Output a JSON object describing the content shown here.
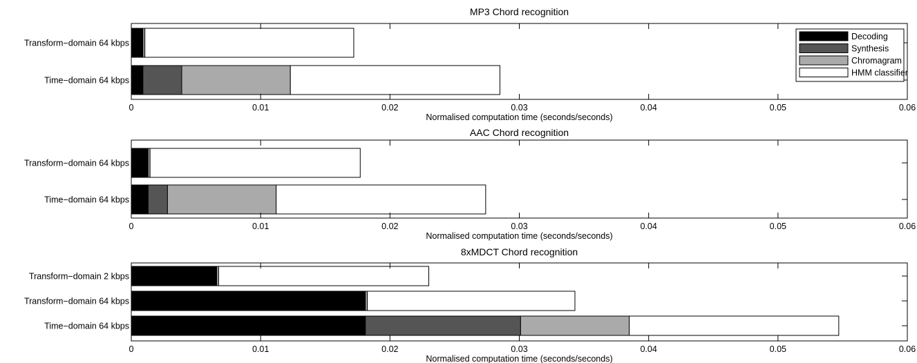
{
  "legend": {
    "placement": "top-right",
    "entries": [
      {
        "label": "Decoding",
        "color": "#000000"
      },
      {
        "label": "Synthesis",
        "color": "#555555"
      },
      {
        "label": "Chromagram",
        "color": "#aaaaaa"
      },
      {
        "label": "HMM classifier",
        "color": "#ffffff"
      }
    ]
  },
  "chart_data": [
    {
      "type": "bar",
      "orientation": "horizontal",
      "stacked": true,
      "title": "MP3 Chord recognition",
      "xlabel": "Normalised computation time (seconds/seconds)",
      "xlim": [
        0,
        0.06
      ],
      "xticks": [
        0,
        0.01,
        0.02,
        0.03,
        0.04,
        0.05,
        0.06
      ],
      "xtick_labels": [
        "0",
        "0.01",
        "0.02",
        "0.03",
        "0.04",
        "0.05",
        "0.06"
      ],
      "categories": [
        "Transform−domain 64 kbps",
        "Time−domain 64 kbps"
      ],
      "series": [
        {
          "name": "Decoding",
          "values": [
            0.0009,
            0.0009
          ]
        },
        {
          "name": "Synthesis",
          "values": [
            0.0,
            0.003
          ]
        },
        {
          "name": "Chromagram",
          "values": [
            0.00015,
            0.0084
          ]
        },
        {
          "name": "HMM classifier",
          "values": [
            0.01615,
            0.0162
          ]
        }
      ],
      "grid": false,
      "legend": true
    },
    {
      "type": "bar",
      "orientation": "horizontal",
      "stacked": true,
      "title": "AAC Chord recognition",
      "xlabel": "Normalised computation time (seconds/seconds)",
      "xlim": [
        0,
        0.06
      ],
      "xticks": [
        0,
        0.01,
        0.02,
        0.03,
        0.04,
        0.05,
        0.06
      ],
      "xtick_labels": [
        "0",
        "0.01",
        "0.02",
        "0.03",
        "0.04",
        "0.05",
        "0.06"
      ],
      "categories": [
        "Transform−domain 64 kbps",
        "Time−domain 64 kbps"
      ],
      "series": [
        {
          "name": "Decoding",
          "values": [
            0.0013,
            0.0013
          ]
        },
        {
          "name": "Synthesis",
          "values": [
            0.0,
            0.0015
          ]
        },
        {
          "name": "Chromagram",
          "values": [
            0.00015,
            0.0084
          ]
        },
        {
          "name": "HMM classifier",
          "values": [
            0.01625,
            0.0162
          ]
        }
      ],
      "grid": false,
      "legend": false
    },
    {
      "type": "bar",
      "orientation": "horizontal",
      "stacked": true,
      "title": "8xMDCT Chord recognition",
      "xlabel": "Normalised computation time (seconds/seconds)",
      "xlim": [
        0,
        0.06
      ],
      "xticks": [
        0,
        0.01,
        0.02,
        0.03,
        0.04,
        0.05,
        0.06
      ],
      "xtick_labels": [
        "0",
        "0.01",
        "0.02",
        "0.03",
        "0.04",
        "0.05",
        "0.06"
      ],
      "categories": [
        "Transform−domain 2 kbps",
        "Transform−domain 64 kbps",
        "Time−domain 64 kbps"
      ],
      "series": [
        {
          "name": "Decoding",
          "values": [
            0.0066,
            0.0181,
            0.0181
          ]
        },
        {
          "name": "Synthesis",
          "values": [
            0.0,
            0.0,
            0.012
          ]
        },
        {
          "name": "Chromagram",
          "values": [
            0.00015,
            0.00015,
            0.0084
          ]
        },
        {
          "name": "HMM classifier",
          "values": [
            0.01625,
            0.01605,
            0.0162
          ]
        }
      ],
      "grid": false,
      "legend": false
    }
  ]
}
